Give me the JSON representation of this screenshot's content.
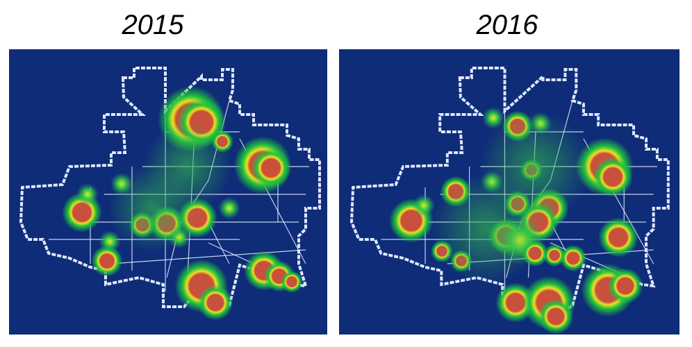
{
  "panels": [
    {
      "title": "2015",
      "background": "#0e2c78"
    },
    {
      "title": "2016",
      "background": "#0e2c78"
    }
  ],
  "colors": {
    "boundary": "#dfe7ff",
    "streets": "#e8eeff",
    "hot": "#c8503c",
    "warm": "#f0e020",
    "cool": "#20c040"
  }
}
